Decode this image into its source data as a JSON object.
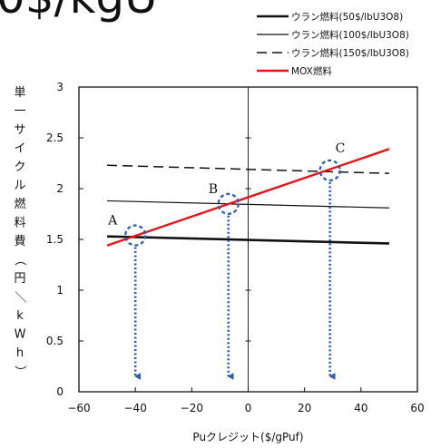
{
  "page": {
    "title": "0$/kgU"
  },
  "chart_data": {
    "type": "line",
    "title": "",
    "xlabel": "Puクレジット($/gPuf)",
    "ylabel": "単一サイクル燃料費（円／kWh）",
    "xlim": [
      -60,
      60
    ],
    "ylim": [
      0,
      3
    ],
    "x_ticks": [
      "−60",
      "−40",
      "−20",
      "0",
      "20",
      "40",
      "60"
    ],
    "y_ticks": [
      "0",
      "0.5",
      "1",
      "1.5",
      "2",
      "2.5",
      "3"
    ],
    "legend_position": "top-right",
    "series": [
      {
        "name": "ウラン燃料(50$/lbU3O8)",
        "style": "thick-solid",
        "color": "#111111",
        "x": [
          -50,
          50
        ],
        "y": [
          1.53,
          1.46
        ]
      },
      {
        "name": "ウラン燃料(100$/lbU3O8)",
        "style": "thin-solid",
        "color": "#111111",
        "x": [
          -50,
          50
        ],
        "y": [
          1.88,
          1.81
        ]
      },
      {
        "name": "ウラン燃料(150$/lbU3O8)",
        "style": "dashed",
        "color": "#111111",
        "x": [
          -50,
          50
        ],
        "y": [
          2.23,
          2.15
        ]
      },
      {
        "name": "MOX燃料",
        "style": "solid",
        "color": "#e8141b",
        "x": [
          -50,
          50
        ],
        "y": [
          1.44,
          2.39
        ]
      }
    ],
    "annotations": [
      {
        "label": "A",
        "x": -40,
        "y": 1.54
      },
      {
        "label": "B",
        "x": -7,
        "y": 1.85
      },
      {
        "label": "C",
        "x": 29,
        "y": 2.18
      }
    ],
    "arrow_color": "#2a5db0",
    "circle_color": "#2a5db0"
  }
}
